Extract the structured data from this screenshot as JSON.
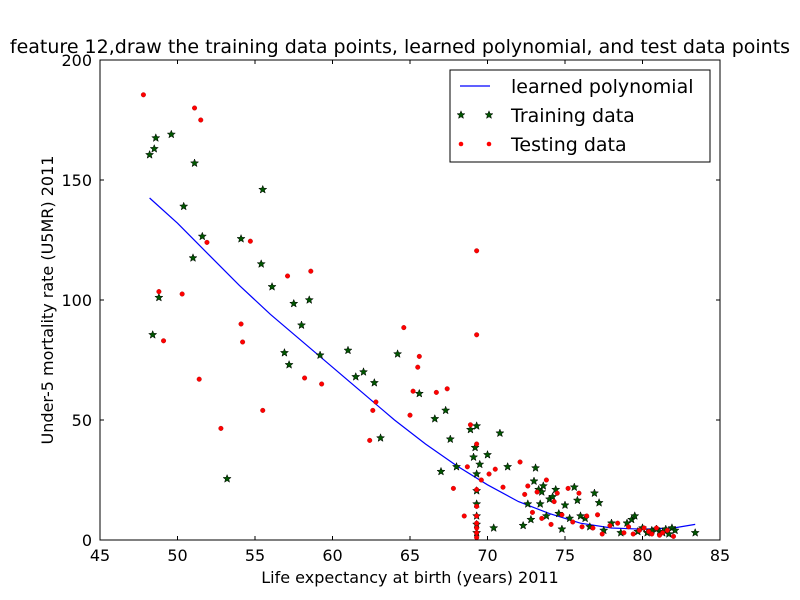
{
  "chart_data": {
    "type": "scatter",
    "title": "feature 12,draw the training data points, learned polynomial, and test data points",
    "xlabel": "Life expectancy at birth (years) 2011",
    "ylabel": "Under-5 mortality rate (U5MR) 2011",
    "xlim": [
      45,
      85
    ],
    "ylim": [
      0,
      200
    ],
    "xticks": [
      45,
      50,
      55,
      60,
      65,
      70,
      75,
      80,
      85
    ],
    "yticks": [
      0,
      50,
      100,
      150,
      200
    ],
    "grid": false,
    "legend": "top-right",
    "series": [
      {
        "name": "learned polynomial",
        "kind": "line",
        "color": "#0000ff",
        "x": [
          48.2,
          50,
          52,
          54,
          56,
          58,
          60,
          62,
          64,
          66,
          68,
          70,
          72,
          74,
          76,
          78,
          80,
          82,
          83.4
        ],
        "y": [
          142.5,
          132,
          119,
          106,
          94,
          83,
          72,
          61,
          50,
          40,
          31,
          23,
          16,
          11,
          7,
          5,
          4.5,
          5,
          6.5
        ]
      },
      {
        "name": "Training data",
        "kind": "star",
        "color": "#005500",
        "x": [
          48.2,
          48.4,
          48.5,
          48.6,
          48.8,
          49.6,
          50.4,
          51.0,
          51.1,
          51.6,
          53.2,
          54.1,
          55.4,
          55.5,
          56.1,
          56.9,
          57.2,
          57.5,
          58.0,
          58.5,
          59.2,
          61.0,
          61.5,
          62.0,
          62.7,
          63.1,
          64.2,
          65.6,
          66.6,
          67.0,
          67.3,
          67.6,
          68.0,
          68.9,
          69.1,
          69.2,
          69.3,
          69.3,
          69.3,
          69.3,
          69.3,
          69.3,
          69.3,
          69.5,
          70.0,
          70.4,
          70.8,
          71.3,
          72.3,
          72.6,
          72.8,
          73.0,
          73.1,
          73.3,
          73.4,
          73.5,
          73.6,
          73.8,
          74.0,
          74.2,
          74.4,
          74.6,
          74.8,
          75.0,
          75.3,
          75.6,
          75.8,
          76.0,
          76.3,
          76.6,
          76.9,
          77.2,
          77.5,
          78.0,
          78.6,
          79.0,
          79.3,
          79.5,
          79.7,
          80.0,
          80.3,
          80.6,
          80.9,
          81.1,
          81.3,
          81.5,
          81.7,
          81.9,
          82.1,
          83.4
        ],
        "y": [
          160.5,
          85.5,
          163,
          167.5,
          101,
          169,
          139,
          117.5,
          157,
          126.5,
          25.5,
          125.5,
          115,
          146,
          105.5,
          78,
          73,
          98.5,
          89.5,
          100,
          77,
          79,
          68,
          70,
          65.5,
          42.5,
          77.5,
          61,
          50.5,
          28.5,
          54,
          42,
          30.5,
          46,
          34.5,
          38.5,
          47.5,
          27.5,
          20.5,
          15,
          10,
          6.5,
          3,
          31.5,
          35.5,
          5,
          44.5,
          30.5,
          6,
          15,
          8.5,
          24.5,
          30,
          21,
          15,
          20,
          22.5,
          10,
          17,
          18,
          21,
          11,
          4.5,
          14.5,
          9,
          22,
          16.5,
          10,
          9,
          5.5,
          19.5,
          15.5,
          4,
          7,
          3,
          7,
          8.5,
          10,
          3.5,
          5,
          3,
          4,
          4.5,
          3.5,
          3,
          4.5,
          2.5,
          5,
          4,
          3
        ]
      },
      {
        "name": "Testing data",
        "kind": "dot",
        "color": "#ff0000",
        "x": [
          47.8,
          48.8,
          49.1,
          50.3,
          51.1,
          51.4,
          51.5,
          51.9,
          52.8,
          54.1,
          54.2,
          54.7,
          55.5,
          57.1,
          58.2,
          58.6,
          59.3,
          62.4,
          62.6,
          62.8,
          64.6,
          65.0,
          65.2,
          65.5,
          65.6,
          66.7,
          67.4,
          67.8,
          68.5,
          68.7,
          68.9,
          69.3,
          69.3,
          69.3,
          69.3,
          69.3,
          69.3,
          69.3,
          69.3,
          69.3,
          69.3,
          69.6,
          70.1,
          70.5,
          71.0,
          72.1,
          72.4,
          72.6,
          72.9,
          73.2,
          73.5,
          73.8,
          74.1,
          74.3,
          74.5,
          74.8,
          75.2,
          75.5,
          75.9,
          76.1,
          76.4,
          76.8,
          77.1,
          77.4,
          77.9,
          78.4,
          78.8,
          79.1,
          79.4,
          79.8,
          80.1,
          80.4,
          80.6,
          80.9,
          81.1,
          81.3,
          81.6,
          82.0
        ],
        "y": [
          185.5,
          103.5,
          83,
          102.5,
          180,
          67,
          175,
          124,
          46.5,
          90,
          82.5,
          124.5,
          54,
          110,
          67.5,
          112,
          65,
          41.5,
          54,
          57.5,
          88.5,
          52,
          62,
          72,
          76.5,
          61.5,
          63,
          21.5,
          10,
          30.5,
          48,
          120.5,
          85.5,
          40,
          21,
          14,
          10,
          7,
          5,
          3,
          1,
          25,
          27.5,
          29.5,
          22,
          32.5,
          19,
          22.5,
          11.5,
          20,
          9,
          25,
          6.5,
          16,
          19.5,
          10.5,
          21.5,
          7.5,
          19.5,
          5.5,
          10,
          5,
          10.5,
          2.5,
          6,
          7,
          3,
          5.5,
          2.5,
          4,
          5,
          3.5,
          2.5,
          5,
          2,
          3,
          4,
          1.5
        ]
      }
    ]
  }
}
